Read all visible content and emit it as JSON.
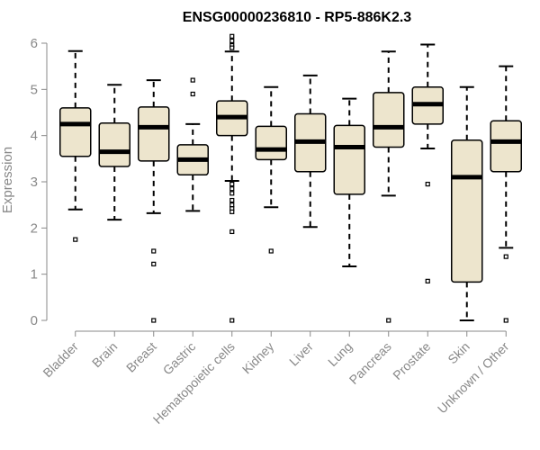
{
  "chart_data": {
    "type": "box",
    "title": "ENSG00000236810 - RP5-886K2.3",
    "xlabel": "",
    "ylabel": "Expression",
    "ylim": [
      0,
      6
    ],
    "yticks": [
      "0",
      "1",
      "2",
      "3",
      "4",
      "5",
      "6"
    ],
    "grid": false,
    "legend": "none",
    "colors": {
      "box_fill": "#ede5cd",
      "box_stroke": "#000000",
      "axis": "#888888",
      "title": "#000000"
    },
    "categories": [
      "Bladder",
      "Brain",
      "Breast",
      "Gastric",
      "Hematopoietic cells",
      "Kidney",
      "Liver",
      "Lung",
      "Pancreas",
      "Prostate",
      "Skin",
      "Unknown / Other"
    ],
    "boxes": [
      {
        "whisker_low": 2.4,
        "q1": 3.55,
        "median": 4.25,
        "q3": 4.6,
        "whisker_high": 5.83,
        "outliers": [
          1.75
        ]
      },
      {
        "whisker_low": 2.18,
        "q1": 3.33,
        "median": 3.65,
        "q3": 4.27,
        "whisker_high": 5.1,
        "outliers": []
      },
      {
        "whisker_low": 2.32,
        "q1": 3.45,
        "median": 4.18,
        "q3": 4.62,
        "whisker_high": 5.2,
        "outliers": [
          1.5,
          1.22,
          0.0
        ]
      },
      {
        "whisker_low": 2.37,
        "q1": 3.15,
        "median": 3.48,
        "q3": 3.8,
        "whisker_high": 4.25,
        "outliers": [
          5.2,
          4.9
        ]
      },
      {
        "whisker_low": 3.02,
        "q1": 4.0,
        "median": 4.4,
        "q3": 4.75,
        "whisker_high": 5.82,
        "outliers": [
          6.15,
          6.05,
          5.95,
          5.9,
          2.95,
          2.85,
          2.75,
          2.6,
          2.5,
          2.42,
          2.35,
          1.92,
          0.0
        ]
      },
      {
        "whisker_low": 2.45,
        "q1": 3.48,
        "median": 3.7,
        "q3": 4.2,
        "whisker_high": 5.05,
        "outliers": [
          1.5
        ]
      },
      {
        "whisker_low": 2.02,
        "q1": 3.22,
        "median": 3.87,
        "q3": 4.47,
        "whisker_high": 5.3,
        "outliers": []
      },
      {
        "whisker_low": 1.17,
        "q1": 2.73,
        "median": 3.75,
        "q3": 4.22,
        "whisker_high": 4.8,
        "outliers": []
      },
      {
        "whisker_low": 2.7,
        "q1": 3.75,
        "median": 4.18,
        "q3": 4.93,
        "whisker_high": 5.82,
        "outliers": [
          0.0
        ]
      },
      {
        "whisker_low": 3.72,
        "q1": 4.25,
        "median": 4.68,
        "q3": 5.05,
        "whisker_high": 5.97,
        "outliers": [
          2.95,
          0.85
        ]
      },
      {
        "whisker_low": 0.0,
        "q1": 0.83,
        "median": 3.1,
        "q3": 3.9,
        "whisker_high": 5.05,
        "outliers": []
      },
      {
        "whisker_low": 1.57,
        "q1": 3.22,
        "median": 3.87,
        "q3": 4.32,
        "whisker_high": 5.5,
        "outliers": [
          1.38,
          0.0
        ]
      }
    ]
  }
}
